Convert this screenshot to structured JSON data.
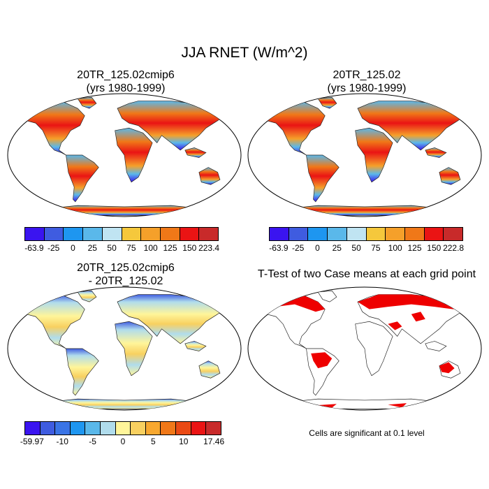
{
  "title": "JJA RNET (W/m^2)",
  "panels": [
    {
      "title": "20TR_125.02cmip6",
      "subtitle": "(yrs 1980-1999)"
    },
    {
      "title": "20TR_125.02",
      "subtitle": "(yrs 1980-1999)"
    },
    {
      "title": "20TR_125.02cmip6",
      "subtitle": "- 20TR_125.02"
    },
    {
      "title": "T-Test of two Case means at each grid point"
    }
  ],
  "colorbars": {
    "a": {
      "colors": [
        "#3a14f0",
        "#3f5ce0",
        "#1e96f0",
        "#5ab8ea",
        "#c0e4f2",
        "#f5c83c",
        "#f5a02a",
        "#f07818",
        "#ea1414",
        "#c82a2a"
      ],
      "labels": [
        "-63.9",
        "-25",
        "0",
        "25",
        "50",
        "75",
        "100",
        "125",
        "150",
        "223.4"
      ]
    },
    "b": {
      "colors": [
        "#3a14f0",
        "#3f5ce0",
        "#1e96f0",
        "#5ab8ea",
        "#c0e4f2",
        "#f5c83c",
        "#f5a02a",
        "#f07818",
        "#ea1414",
        "#c82a2a"
      ],
      "labels": [
        "-63.9",
        "-25",
        "0",
        "25",
        "50",
        "75",
        "100",
        "125",
        "150",
        "222.8"
      ]
    },
    "c": {
      "colors": [
        "#3a14f0",
        "#3f5ce0",
        "#3a74e6",
        "#1e96f0",
        "#5ab8ea",
        "#b0dcec",
        "#fff59a",
        "#f8d060",
        "#f8a830",
        "#f07818",
        "#ea4a14",
        "#ea1414",
        "#c82a2a"
      ],
      "labels": [
        "-59.97",
        "-10",
        "-5",
        "0",
        "5",
        "10",
        "17.46"
      ]
    }
  },
  "note": "Cells are significant at 0.1 level"
}
